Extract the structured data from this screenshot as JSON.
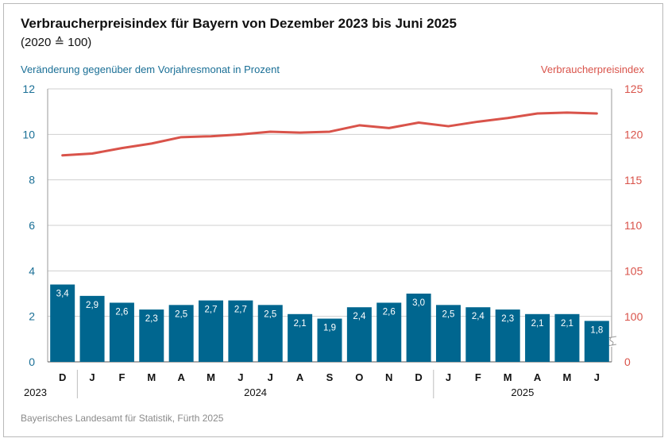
{
  "title": "Verbraucherpreisindex für Bayern von Dezember 2023 bis Juni 2025",
  "subtitle": "(2020 ≙ 100)",
  "source": "Bayerisches Landesamt für Statistik, Fürth 2025",
  "colors": {
    "bar": "#00668f",
    "line": "#d9534a",
    "left_axis": "#1a6f96",
    "right_axis": "#d9534a",
    "grid": "#cfcfcf"
  },
  "chart_data": {
    "type": "bar",
    "ylabel": "Veränderung gegenüber dem Vorjahresmonat in Prozent",
    "y2label": "Verbraucherpreisindex",
    "ylim": [
      0,
      12
    ],
    "y2lim": [
      100,
      125
    ],
    "y2_axis_break": true,
    "grid": true,
    "left_ticks": [
      "0",
      "2",
      "4",
      "6",
      "8",
      "10",
      "12"
    ],
    "right_ticks": [
      "0",
      "100",
      "105",
      "110",
      "115",
      "120",
      "125"
    ],
    "categories": [
      "D",
      "J",
      "F",
      "M",
      "A",
      "M",
      "J",
      "J",
      "A",
      "S",
      "O",
      "N",
      "D",
      "J",
      "F",
      "M",
      "A",
      "M",
      "J"
    ],
    "year_groups": [
      {
        "label": "2023",
        "count": 1
      },
      {
        "label": "2024",
        "count": 12
      },
      {
        "label": "2025",
        "count": 6
      }
    ],
    "bar_values": [
      3.4,
      2.9,
      2.6,
      2.3,
      2.5,
      2.7,
      2.7,
      2.5,
      2.1,
      1.9,
      2.4,
      2.6,
      3.0,
      2.5,
      2.4,
      2.3,
      2.1,
      2.1,
      1.8
    ],
    "bar_labels": [
      "3,4",
      "2,9",
      "2,6",
      "2,3",
      "2,5",
      "2,7",
      "2,7",
      "2,5",
      "2,1",
      "1,9",
      "2,4",
      "2,6",
      "3,0",
      "2,5",
      "2,4",
      "2,3",
      "2,1",
      "2,1",
      "1,8"
    ],
    "index_values": [
      117.7,
      117.9,
      118.5,
      119.0,
      119.7,
      119.8,
      120.0,
      120.3,
      120.2,
      120.3,
      121.0,
      120.7,
      121.3,
      120.9,
      121.4,
      121.8,
      122.3,
      122.4,
      122.3
    ]
  }
}
